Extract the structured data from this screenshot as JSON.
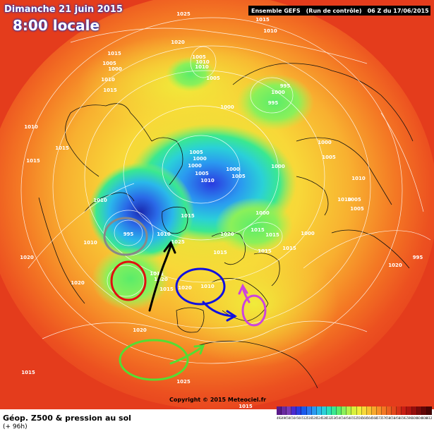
{
  "header": {
    "date": "Dimanche 21 juin 2015",
    "time": "8:00 locale"
  },
  "banner": {
    "model": "Ensemble GEFS",
    "run": "(Run de contrôle)",
    "init": "06 Z du 17/06/2015"
  },
  "footer": {
    "title": "Géop. Z500 & pression au sol",
    "subtitle": "(+ 96h)",
    "copyright": "Copyright © 2015 Meteociel.fr"
  },
  "legend": {
    "values": [
      "492",
      "496",
      "500",
      "504",
      "508",
      "512",
      "516",
      "520",
      "524",
      "528",
      "532",
      "536",
      "540",
      "544",
      "548",
      "552",
      "556",
      "560",
      "564",
      "568",
      "572",
      "576",
      "580",
      "584",
      "588",
      "592",
      "596",
      "600",
      "604",
      "608",
      "612"
    ],
    "colors": [
      "#5a1a8a",
      "#6a2aa0",
      "#7a3ab4",
      "#4a2ad0",
      "#2a3ae0",
      "#1a5aec",
      "#2a7af0",
      "#2a9af0",
      "#2ab8ea",
      "#2ad0d8",
      "#2ae0b8",
      "#3ae890",
      "#5aec6a",
      "#8af05a",
      "#b4f04a",
      "#d8f03a",
      "#f0ec3a",
      "#f8d838",
      "#f8c030",
      "#f8a82c",
      "#f89028",
      "#f47824",
      "#ec6020",
      "#e4481c",
      "#d83018",
      "#c81e14",
      "#b01410",
      "#960e0c",
      "#7a0a0a",
      "#620606",
      "#4a0404"
    ]
  },
  "isobars": [
    {
      "label": "1025"
    },
    {
      "label": "1015"
    },
    {
      "label": "1020"
    },
    {
      "label": "1010"
    },
    {
      "label": "1005"
    },
    {
      "label": "1010"
    },
    {
      "label": "1010"
    },
    {
      "label": "1015"
    },
    {
      "label": "1005"
    },
    {
      "label": "1000"
    },
    {
      "label": "1010"
    },
    {
      "label": "1015"
    },
    {
      "label": "1005"
    },
    {
      "label": "1000"
    },
    {
      "label": "995"
    },
    {
      "label": "1000"
    },
    {
      "label": "995"
    },
    {
      "label": "1005"
    },
    {
      "label": "1000"
    },
    {
      "label": "1000"
    },
    {
      "label": "1005"
    },
    {
      "label": "1010"
    },
    {
      "label": "1000"
    },
    {
      "label": "1005"
    },
    {
      "label": "1010"
    },
    {
      "label": "995"
    },
    {
      "label": "1010"
    },
    {
      "label": "1025"
    },
    {
      "label": "1015"
    },
    {
      "label": "1020"
    },
    {
      "label": "1015"
    },
    {
      "label": "1020"
    },
    {
      "label": "1015"
    },
    {
      "label": "1020"
    },
    {
      "label": "1010"
    },
    {
      "label": "1015"
    },
    {
      "label": "1020"
    },
    {
      "label": "1010"
    },
    {
      "label": "1000"
    },
    {
      "label": "1005"
    },
    {
      "label": "1020"
    },
    {
      "label": "1015"
    },
    {
      "label": "1010"
    },
    {
      "label": "1000"
    },
    {
      "label": "1015"
    },
    {
      "label": "1020"
    },
    {
      "label": "1010"
    },
    {
      "label": "1005"
    },
    {
      "label": "1005"
    },
    {
      "label": "1010"
    },
    {
      "label": "995"
    },
    {
      "label": "1000"
    },
    {
      "label": "1015"
    },
    {
      "label": "1015"
    },
    {
      "label": "1015"
    },
    {
      "label": "1000"
    },
    {
      "label": "1015"
    },
    {
      "label": "1020"
    },
    {
      "label": "1015"
    },
    {
      "label": "1025"
    },
    {
      "label": "1015"
    }
  ],
  "annotations": [
    {
      "name": "gray-circle",
      "color": "#888888"
    },
    {
      "name": "red-circle",
      "color": "#e01010"
    },
    {
      "name": "blue-circle",
      "color": "#1010e0"
    },
    {
      "name": "violet-circle",
      "color": "#cc44dd"
    },
    {
      "name": "green-circle",
      "color": "#55dd33"
    },
    {
      "name": "black-arrow",
      "color": "#000000"
    },
    {
      "name": "blue-arrow",
      "color": "#1010e0"
    },
    {
      "name": "violet-arrow",
      "color": "#cc44dd"
    },
    {
      "name": "green-arrow",
      "color": "#55dd33"
    }
  ]
}
